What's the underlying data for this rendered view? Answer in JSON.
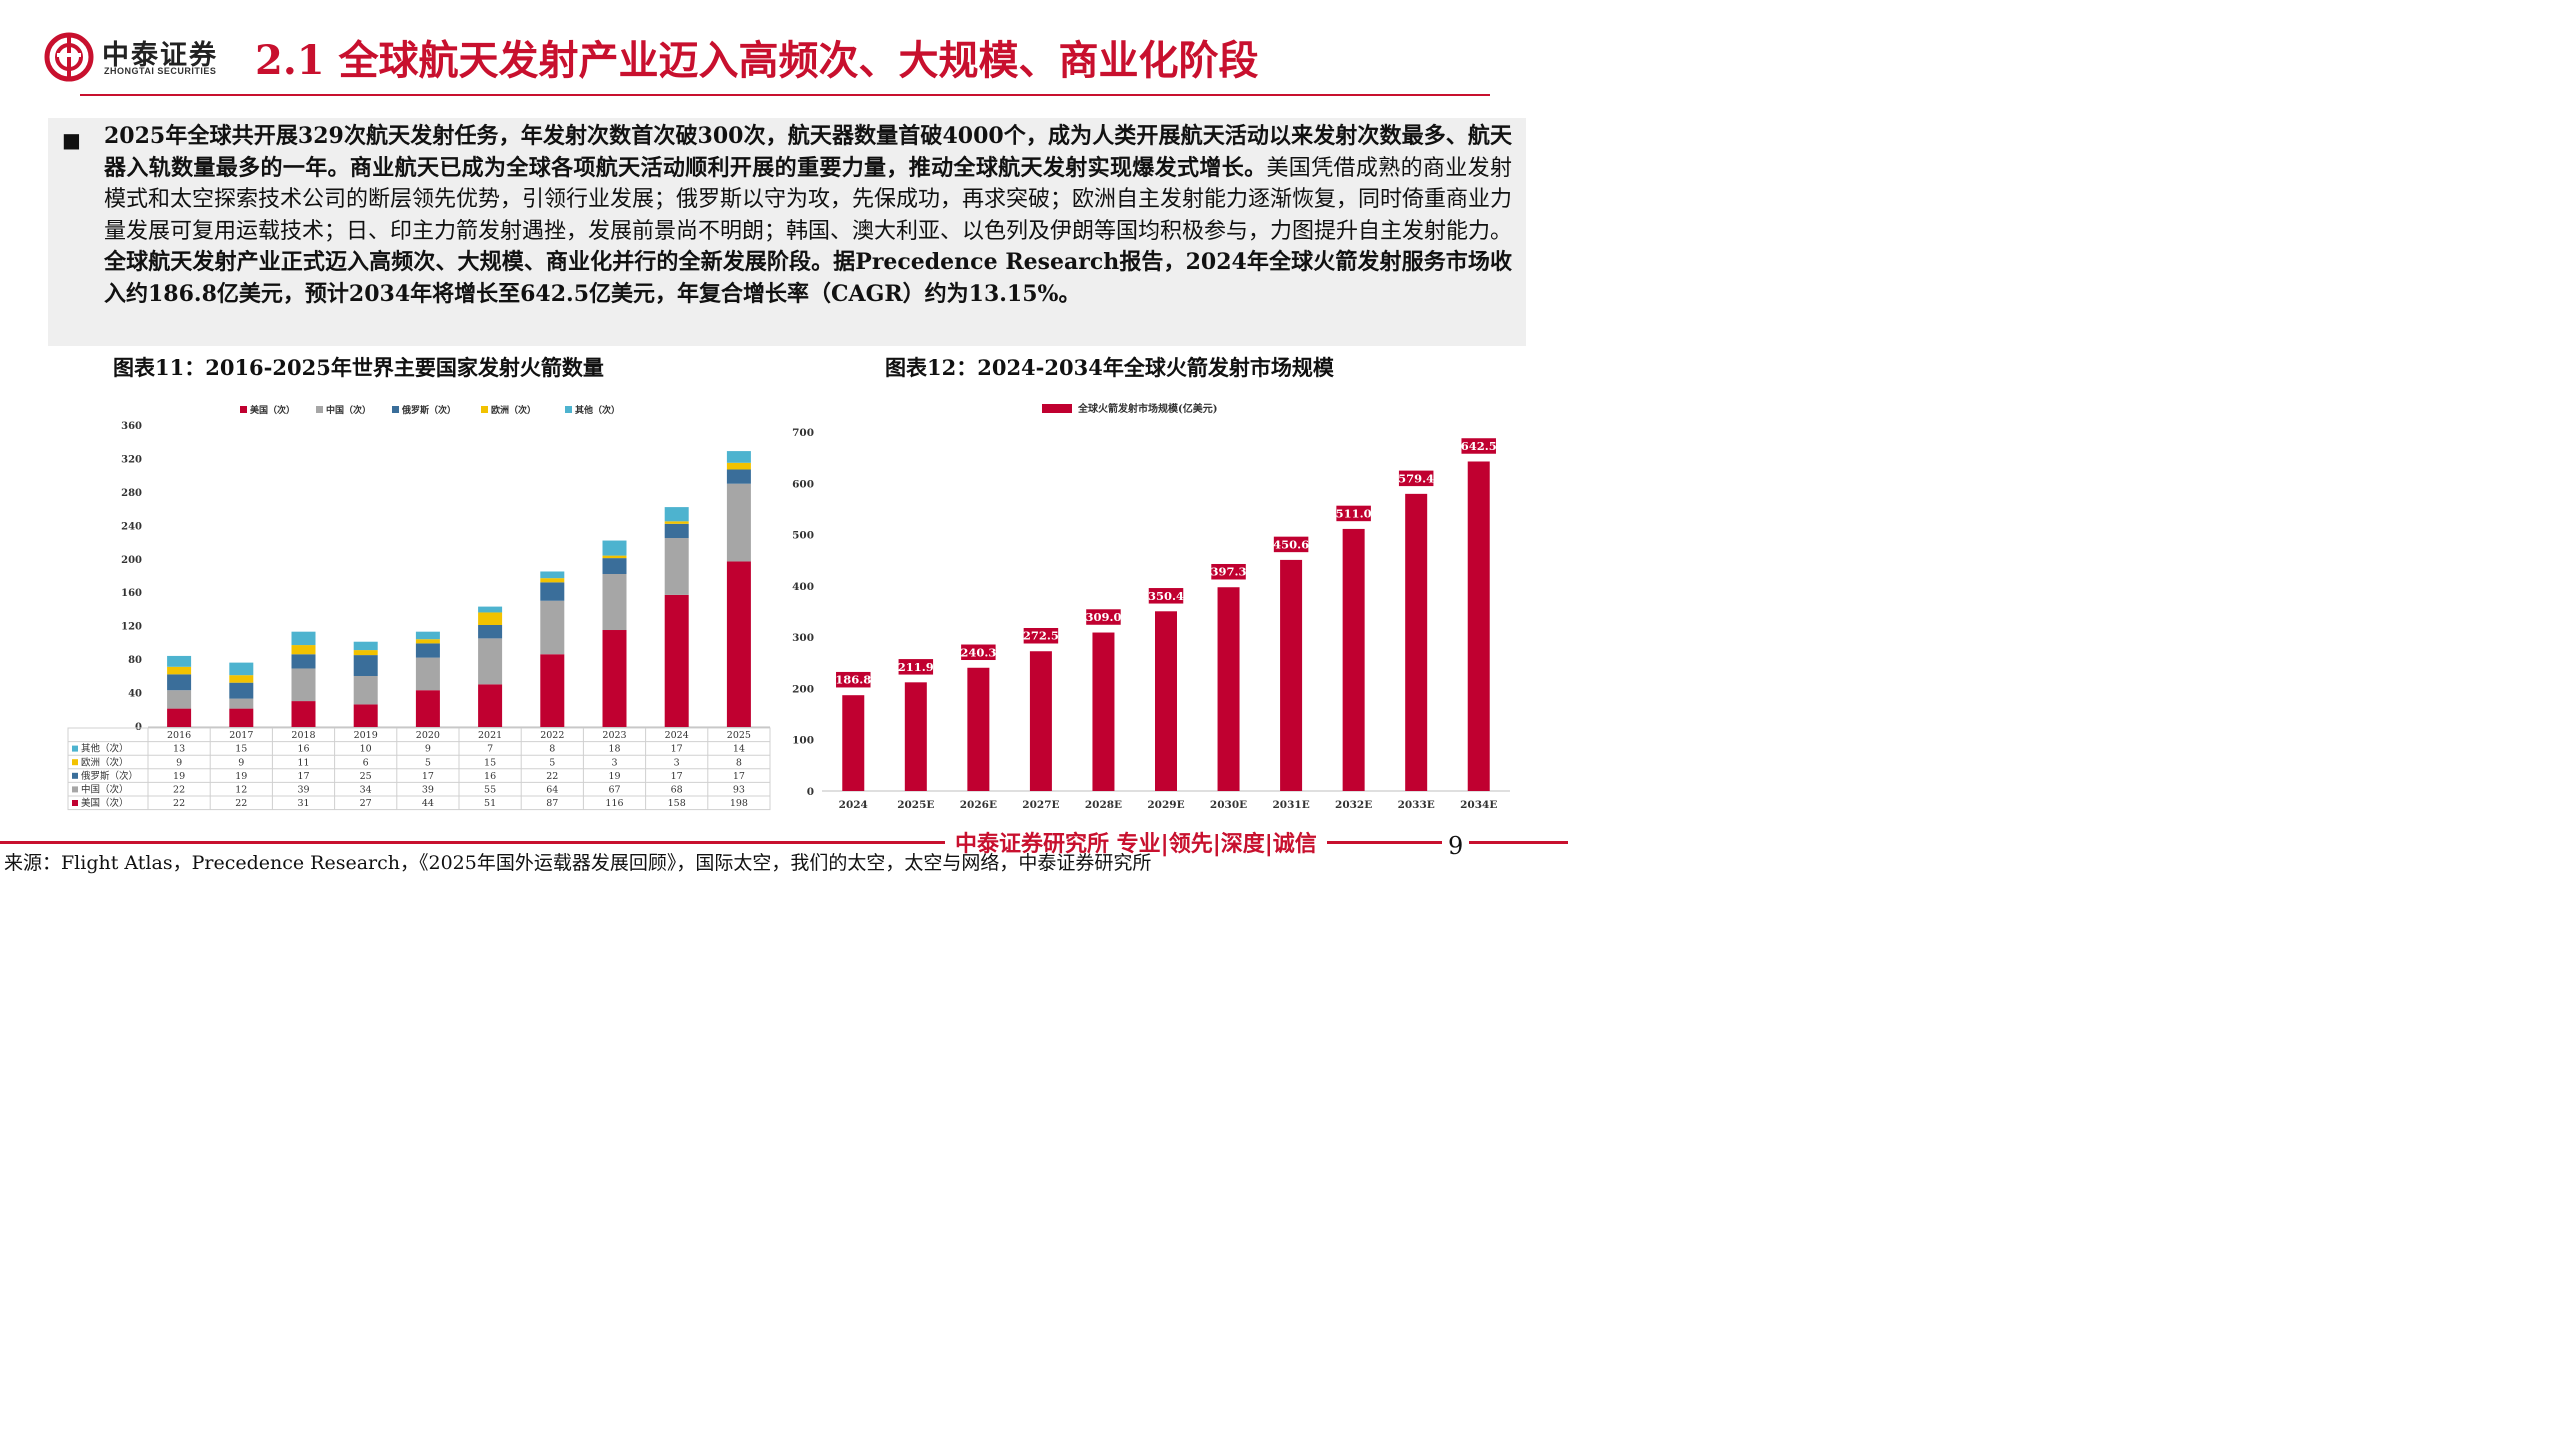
{
  "header": {
    "logo_cn": "中泰证券",
    "logo_en": "ZHONGTAI SECURITIES",
    "title": "2.1 全球航天发射产业迈入高频次、大规模、商业化阶段"
  },
  "summary": {
    "bullet": "■",
    "bold_1": "2025年全球共开展329次航天发射任务，年发射次数首次破300次，航天器数量首破4000个，成为人类开展航天活动以来发射次数最多、航天器入轨数量最多的一年。商业航天已成为全球各项航天活动顺利开展的重要力量，推动全球航天发射实现爆发式增长。",
    "normal_1": "美国凭借成熟的商业发射模式和太空探索技术公司的断层领先优势，引领行业发展；俄罗斯以守为攻，先保成功，再求突破；欧洲自主发射能力逐渐恢复，同时倚重商业力量发展可复用运载技术；日、印主力箭发射遇挫，发展前景尚不明朗；韩国、澳大利亚、以色列及伊朗等国均积极参与，力图提升自主发射能力。",
    "bold_2": "全球航天发射产业正式迈入高频次、大规模、商业化并行的全新发展阶段。据Precedence Research报告，2024年全球火箭发射服务市场收入约186.8亿美元，预计2034年将增长至642.5亿美元，年复合增长率（CAGR）约为13.15%。"
  },
  "figures": {
    "fig11_title": "图表11：2016-2025年世界主要国家发射火箭数量",
    "fig12_title": "图表12：2024-2034年全球火箭发射市场规模"
  },
  "colors": {
    "brand_red": "#c8102e",
    "usa": "#c00030",
    "china": "#a6a6a6",
    "russia": "#3a6e9a",
    "europe": "#f2c200",
    "other": "#4db3cf"
  },
  "chart_data": [
    {
      "type": "bar",
      "stacked": true,
      "title": "",
      "categories": [
        "2016",
        "2017",
        "2018",
        "2019",
        "2020",
        "2021",
        "2022",
        "2023",
        "2024",
        "2025"
      ],
      "series": [
        {
          "name": "美国（次）",
          "key": "usa",
          "values": [
            22,
            22,
            31,
            27,
            44,
            51,
            87,
            116,
            158,
            198
          ]
        },
        {
          "name": "中国（次）",
          "key": "china",
          "values": [
            22,
            12,
            39,
            34,
            39,
            55,
            64,
            67,
            68,
            93
          ]
        },
        {
          "name": "俄罗斯（次）",
          "key": "russia",
          "values": [
            19,
            19,
            17,
            25,
            17,
            16,
            22,
            19,
            17,
            17
          ]
        },
        {
          "name": "欧洲（次）",
          "key": "europe",
          "values": [
            9,
            9,
            11,
            6,
            5,
            15,
            5,
            3,
            3,
            8
          ]
        },
        {
          "name": "其他（次）",
          "key": "other",
          "values": [
            13,
            15,
            16,
            10,
            9,
            7,
            8,
            18,
            17,
            14
          ]
        }
      ],
      "legend_order": [
        "美国（次）",
        "中国（次）",
        "俄罗斯（次）",
        "欧洲（次）",
        "其他（次）"
      ],
      "table_order": [
        "其他（次）",
        "欧洲（次）",
        "俄罗斯（次）",
        "中国（次）",
        "美国（次）"
      ],
      "yticks": [
        0,
        40,
        80,
        120,
        160,
        200,
        240,
        280,
        320,
        360
      ],
      "ylim": [
        0,
        360
      ],
      "legend_position": "top",
      "data_table": true
    },
    {
      "type": "bar",
      "title": "",
      "series_name": "全球火箭发射市场规模(亿美元)",
      "categories": [
        "2024",
        "2025E",
        "2026E",
        "2027E",
        "2028E",
        "2029E",
        "2030E",
        "2031E",
        "2032E",
        "2033E",
        "2034E"
      ],
      "values": [
        186.8,
        211.9,
        240.3,
        272.5,
        309.0,
        350.4,
        397.3,
        450.6,
        511.0,
        579.4,
        642.5
      ],
      "value_labels": [
        "186.8",
        "211.9",
        "240.3",
        "272.5",
        "309.0",
        "350.4",
        "397.3",
        "450.6",
        "511.0",
        "579.4",
        "642.5"
      ],
      "yticks": [
        0,
        100,
        200,
        300,
        400,
        500,
        600,
        700
      ],
      "ylim": [
        0,
        700
      ],
      "legend_position": "top"
    }
  ],
  "footer": {
    "slogan": "中泰证券研究所 专业|领先|深度|诚信",
    "page": "9",
    "source": "来源：Flight Atlas，Precedence Research，《2025年国外运载器发展回顾》，国际太空，我们的太空，太空与网络，中泰证券研究所"
  }
}
